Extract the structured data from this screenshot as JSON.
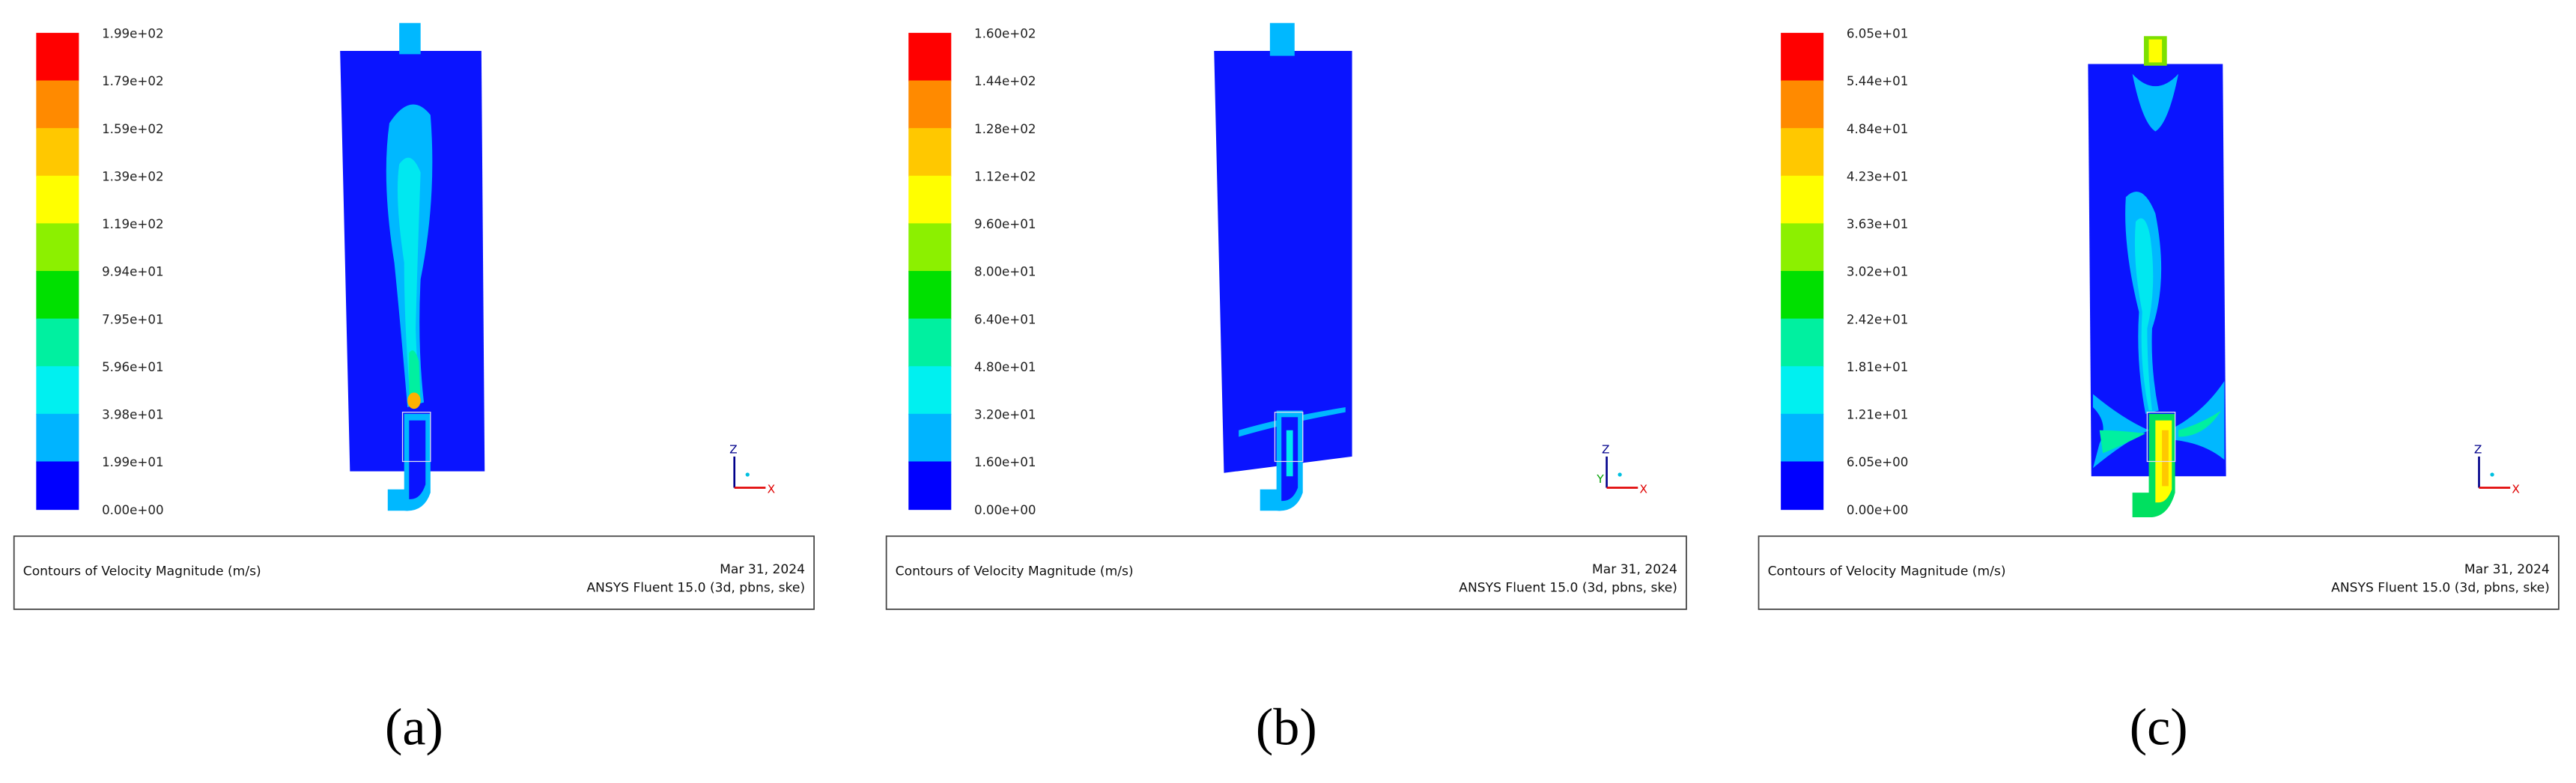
{
  "panels": [
    {
      "legend_labels": [
        "1.99e+02",
        "1.79e+02",
        "1.59e+02",
        "1.39e+02",
        "1.19e+02",
        "9.94e+01",
        "7.95e+01",
        "5.96e+01",
        "3.98e+01",
        "1.99e+01",
        "0.00e+00"
      ],
      "caption": "Contours of Velocity Magnitude (m/s)",
      "date": "Mar 31, 2024",
      "software": "ANSYS Fluent 15.0 (3d, pbns, ske)",
      "axes": [
        "Z",
        "X"
      ],
      "label": "(a)"
    },
    {
      "legend_labels": [
        "1.60e+02",
        "1.44e+02",
        "1.28e+02",
        "1.12e+02",
        "9.60e+01",
        "8.00e+01",
        "6.40e+01",
        "4.80e+01",
        "3.20e+01",
        "1.60e+01",
        "0.00e+00"
      ],
      "caption": "Contours of Velocity Magnitude (m/s)",
      "date": "Mar 31, 2024",
      "software": "ANSYS Fluent 15.0 (3d, pbns, ske)",
      "axes": [
        "Z",
        "Y",
        "X"
      ],
      "label": "(b)"
    },
    {
      "legend_labels": [
        "6.05e+01",
        "5.44e+01",
        "4.84e+01",
        "4.23e+01",
        "3.63e+01",
        "3.02e+01",
        "2.42e+01",
        "1.81e+01",
        "1.21e+01",
        "6.05e+00",
        "0.00e+00"
      ],
      "caption": "Contours of Velocity Magnitude (m/s)",
      "date": "Mar 31, 2024",
      "software": "ANSYS Fluent 15.0 (3d, pbns, ske)",
      "axes": [
        "Z",
        "X"
      ],
      "label": "(c)"
    }
  ]
}
